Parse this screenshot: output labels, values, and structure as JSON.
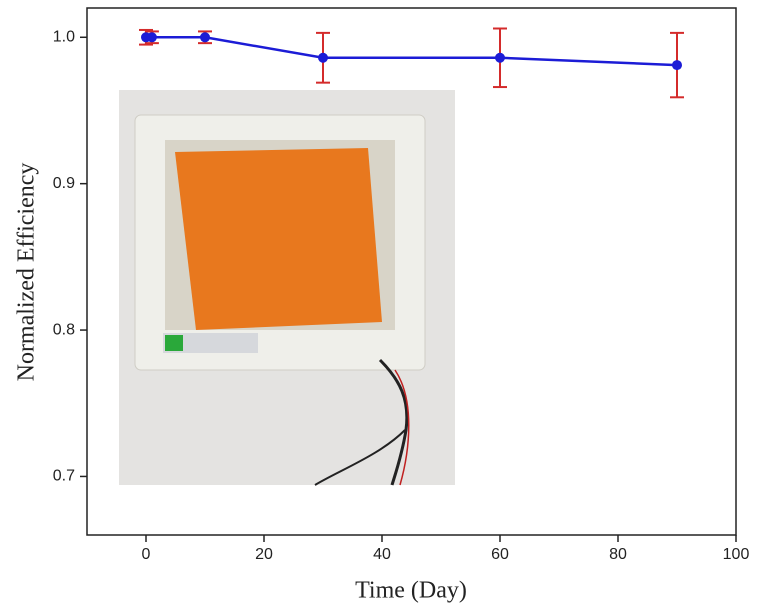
{
  "chart_data": {
    "type": "line",
    "xlabel": "Time (Day)",
    "ylabel": "Normalized Efficiency",
    "x": [
      0,
      1,
      10,
      30,
      60,
      90
    ],
    "series": [
      {
        "color": "#1c1cd6",
        "error_color": "#d42b2b",
        "values": [
          1.0,
          1.0,
          1.0,
          0.986,
          0.986,
          0.981
        ],
        "errors": [
          0.005,
          0.004,
          0.004,
          0.017,
          0.02,
          0.022
        ]
      }
    ],
    "xlim": [
      -10,
      100
    ],
    "xticks": [
      0,
      20,
      40,
      60,
      80,
      100
    ],
    "ylim": [
      0.66,
      1.02
    ],
    "yticks": [
      0.7,
      0.8,
      0.9,
      {
        "value": 1.0,
        "label": "1.0"
      }
    ]
  }
}
